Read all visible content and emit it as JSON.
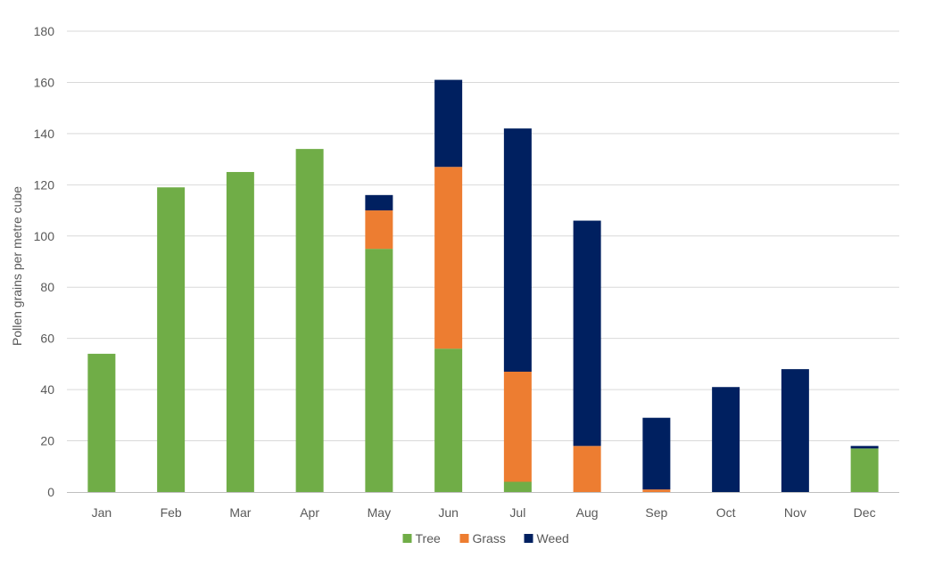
{
  "chart_data": {
    "type": "bar",
    "stacked": true,
    "title": "",
    "xlabel": "",
    "ylabel": "Pollen grains per metre cube",
    "ylim": [
      0,
      180
    ],
    "yticks": [
      0,
      20,
      40,
      60,
      80,
      100,
      120,
      140,
      160,
      180
    ],
    "grid": true,
    "legend_position": "bottom",
    "categories": [
      "Jan",
      "Feb",
      "Mar",
      "Apr",
      "May",
      "Jun",
      "Jul",
      "Aug",
      "Sep",
      "Oct",
      "Nov",
      "Dec"
    ],
    "series": [
      {
        "name": "Tree",
        "color": "#70ad47",
        "values": [
          54,
          119,
          125,
          134,
          95,
          56,
          4,
          0,
          0,
          0,
          0,
          17
        ]
      },
      {
        "name": "Grass",
        "color": "#ed7d31",
        "values": [
          0,
          0,
          0,
          0,
          15,
          71,
          43,
          18,
          1,
          0,
          0,
          0
        ]
      },
      {
        "name": "Weed",
        "color": "#002060",
        "values": [
          0,
          0,
          0,
          0,
          6,
          34,
          95,
          88,
          28,
          41,
          48,
          1
        ]
      }
    ]
  }
}
